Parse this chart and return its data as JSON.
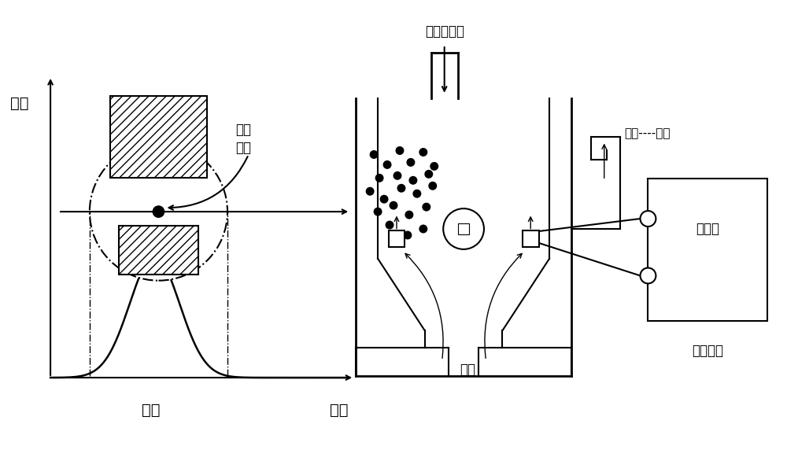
{
  "bg_color": "#ffffff",
  "line_color": "#000000",
  "labels": {
    "voltage": "电压",
    "pulse": "脉冲",
    "time": "时间",
    "detect_hole": "检测\n小孔",
    "diluted_sample": "稀释后样本",
    "negative_pressure": "负压----恒定",
    "electrode": "电极",
    "constant_current": "恒流源",
    "analysis_circuit": "分析电路"
  },
  "font_size_large": 14,
  "font_size_medium": 12,
  "font_size_small": 11
}
